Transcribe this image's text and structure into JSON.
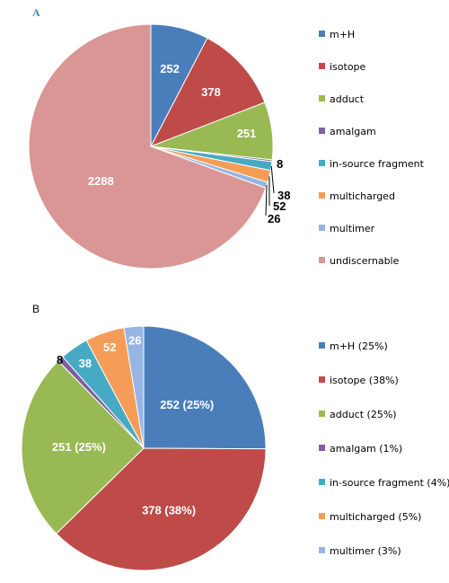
{
  "chart_data": [
    {
      "panel": "A",
      "type": "pie",
      "categories": [
        "m+H",
        "isotope",
        "adduct",
        "amalgam",
        "in-source fragment",
        "multicharged",
        "multimer",
        "undiscernable"
      ],
      "values": [
        252,
        378,
        251,
        8,
        38,
        52,
        26,
        2288
      ],
      "slice_labels": [
        "252",
        "378",
        "251",
        "8",
        "38",
        "52",
        "26",
        "2288"
      ],
      "colors": [
        "#4a7ebb",
        "#be4b48",
        "#98b954",
        "#7d60a0",
        "#46aac5",
        "#f59d56",
        "#97b5e3",
        "#d99694"
      ],
      "legend": [
        "m+H",
        "isotope",
        "adduct",
        "amalgam",
        "in-source fragment",
        "multicharged",
        "multimer",
        "undiscernable"
      ],
      "legend_position": "right"
    },
    {
      "panel": "B",
      "type": "pie",
      "categories": [
        "m+H",
        "isotope",
        "adduct",
        "amalgam",
        "in-source fragment",
        "multicharged",
        "multimer"
      ],
      "values": [
        252,
        378,
        251,
        8,
        38,
        52,
        26
      ],
      "slice_labels": [
        "252 (25%)",
        "378 (38%)",
        "251 (25%)",
        "8",
        "38",
        "52",
        "26"
      ],
      "colors": [
        "#4a7ebb",
        "#be4b48",
        "#98b954",
        "#7d60a0",
        "#46aac5",
        "#f59d56",
        "#97b5e3"
      ],
      "legend": [
        "m+H (25%)",
        "isotope (38%)",
        "adduct (25%)",
        "amalgam (1%)",
        "in-source fragment (4%)",
        "multicharged (5%)",
        "multimer (3%)"
      ],
      "legend_position": "right"
    }
  ]
}
